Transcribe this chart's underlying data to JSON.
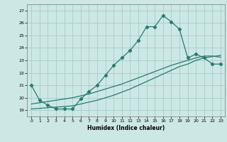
{
  "xlabel": "Humidex (Indice chaleur)",
  "background_color": "#cce8e5",
  "grid_color": "#aacfcc",
  "line_color": "#2a7a6f",
  "xlim": [
    -0.5,
    23.5
  ],
  "ylim": [
    18.5,
    27.5
  ],
  "yticks": [
    19,
    20,
    21,
    22,
    23,
    24,
    25,
    26,
    27
  ],
  "xticks": [
    0,
    1,
    2,
    3,
    4,
    5,
    6,
    7,
    8,
    9,
    10,
    11,
    12,
    13,
    14,
    15,
    16,
    17,
    18,
    19,
    20,
    21,
    22,
    23
  ],
  "line1_x": [
    0,
    1,
    2,
    3,
    4,
    5,
    6,
    7,
    8,
    9,
    10,
    11,
    12,
    13,
    14,
    15,
    16,
    17,
    18,
    19,
    20,
    21,
    22,
    23
  ],
  "line1_y": [
    21.0,
    19.8,
    19.4,
    19.1,
    19.1,
    19.1,
    19.9,
    20.5,
    21.0,
    21.8,
    22.6,
    23.2,
    23.8,
    24.6,
    25.7,
    25.7,
    26.6,
    26.1,
    25.5,
    23.2,
    23.5,
    23.2,
    22.7,
    22.7
  ],
  "line2_x": [
    0,
    1,
    2,
    3,
    4,
    5,
    6,
    7,
    8,
    9,
    10,
    11,
    12,
    13,
    14,
    15,
    16,
    17,
    18,
    19,
    20,
    21,
    22,
    23
  ],
  "line2_y": [
    19.1,
    19.15,
    19.2,
    19.25,
    19.3,
    19.35,
    19.5,
    19.65,
    19.8,
    20.0,
    20.2,
    20.45,
    20.7,
    21.0,
    21.3,
    21.6,
    21.9,
    22.2,
    22.5,
    22.7,
    23.0,
    23.2,
    23.3,
    23.4
  ],
  "line3_x": [
    0,
    1,
    2,
    3,
    4,
    5,
    6,
    7,
    8,
    9,
    10,
    11,
    12,
    13,
    14,
    15,
    16,
    17,
    18,
    19,
    20,
    21,
    22,
    23
  ],
  "line3_y": [
    19.5,
    19.6,
    19.7,
    19.8,
    19.9,
    20.0,
    20.15,
    20.3,
    20.5,
    20.7,
    20.9,
    21.1,
    21.35,
    21.6,
    21.85,
    22.1,
    22.35,
    22.6,
    22.8,
    23.0,
    23.2,
    23.35,
    23.35,
    23.25
  ]
}
